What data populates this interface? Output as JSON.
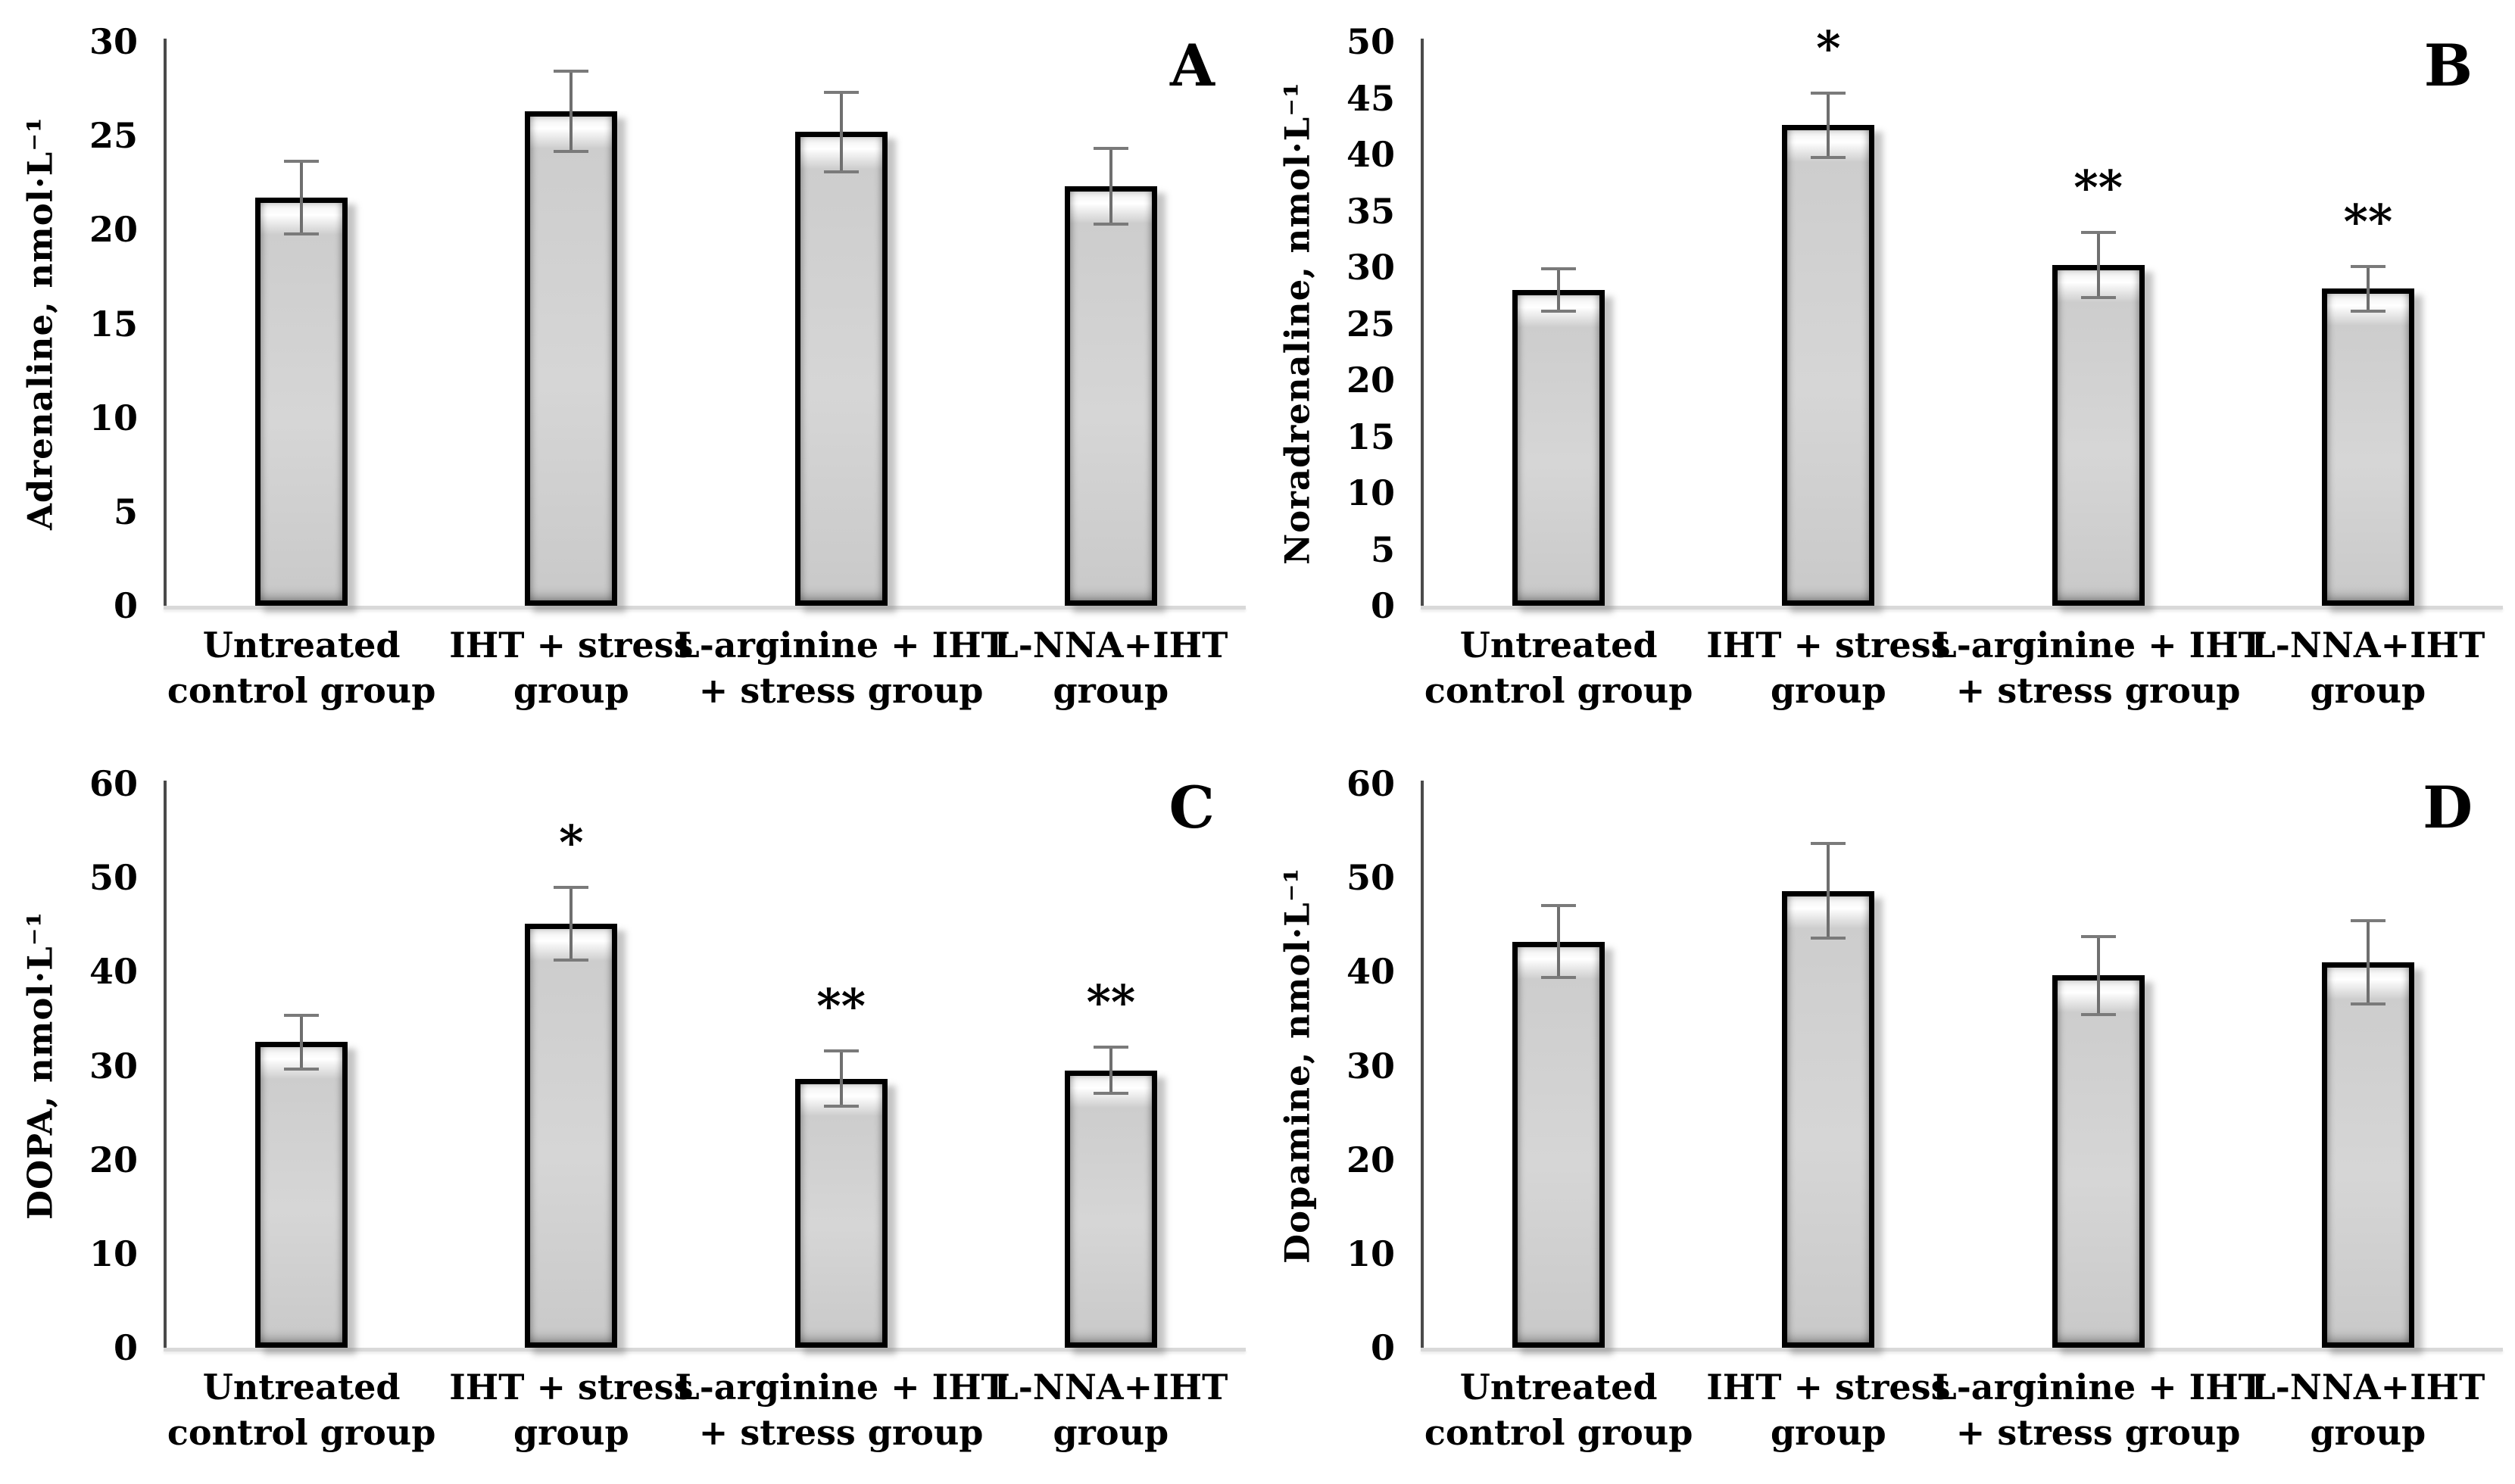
{
  "figure": {
    "background": "#ffffff",
    "layout": "2x2-grid",
    "panel_letters": [
      "A",
      "B",
      "C",
      "D"
    ],
    "colors": {
      "bar_fill": "#d3d3d3",
      "bar_border": "#000000",
      "axis_color": "#4a4a4a",
      "baseline_color": "#d9d9d9",
      "error_bar_color": "#6f6f6f",
      "text_color": "#000000"
    }
  },
  "chart_data": [
    {
      "type": "bar",
      "panel_label": "A",
      "ylabel": "Adrenaline, nmol·L⁻¹",
      "xlabel": "",
      "ylim": [
        0,
        30
      ],
      "yticks": [
        0,
        5,
        10,
        15,
        20,
        25,
        30
      ],
      "grid": false,
      "legend": "none",
      "categories": [
        [
          "Untreated",
          "control group"
        ],
        [
          "IHT + stress",
          "group"
        ],
        [
          "L-arginine + IHT",
          "+ stress group"
        ],
        [
          "L-NNA+IHT",
          "group"
        ]
      ],
      "values": [
        21.7,
        26.3,
        25.2,
        22.3
      ],
      "errors": [
        2.0,
        2.2,
        2.2,
        2.1
      ],
      "significance": [
        "",
        "",
        "",
        ""
      ]
    },
    {
      "type": "bar",
      "panel_label": "B",
      "ylabel": "Noradrenaline, nmol·L⁻¹",
      "xlabel": "",
      "ylim": [
        0,
        50
      ],
      "yticks": [
        0,
        5,
        10,
        15,
        20,
        25,
        30,
        35,
        40,
        45,
        50
      ],
      "grid": false,
      "legend": "none",
      "categories": [
        [
          "Untreated",
          "control group"
        ],
        [
          "IHT + stress",
          "group"
        ],
        [
          "L-arginine + IHT",
          "+ stress group"
        ],
        [
          "L-NNA+IHT",
          "group"
        ]
      ],
      "values": [
        28.0,
        42.6,
        30.2,
        28.1
      ],
      "errors": [
        2.0,
        3.0,
        3.0,
        2.1
      ],
      "significance": [
        "",
        "*",
        "**",
        "**"
      ]
    },
    {
      "type": "bar",
      "panel_label": "C",
      "ylabel": "DOPA, nmol·L⁻¹",
      "xlabel": "",
      "ylim": [
        0,
        60
      ],
      "yticks": [
        0,
        10,
        20,
        30,
        40,
        50,
        60
      ],
      "grid": false,
      "legend": "none",
      "categories": [
        [
          "Untreated",
          "control group"
        ],
        [
          "IHT + stress",
          "group"
        ],
        [
          "L-arginine + IHT",
          "+ stress group"
        ],
        [
          "L-NNA+IHT",
          "group"
        ]
      ],
      "values": [
        32.5,
        45.1,
        28.6,
        29.5
      ],
      "errors": [
        3.0,
        4.0,
        3.1,
        2.6
      ],
      "significance": [
        "",
        "*",
        "**",
        "**"
      ]
    },
    {
      "type": "bar",
      "panel_label": "D",
      "ylabel": "Dopamine, nmol·L⁻¹",
      "xlabel": "",
      "ylim": [
        0,
        60
      ],
      "yticks": [
        0,
        10,
        20,
        30,
        40,
        50,
        60
      ],
      "grid": false,
      "legend": "none",
      "categories": [
        [
          "Untreated",
          "control group"
        ],
        [
          "IHT + stress",
          "group"
        ],
        [
          "L-arginine + IHT",
          "+ stress group"
        ],
        [
          "L-NNA+IHT",
          "group"
        ]
      ],
      "values": [
        43.2,
        48.6,
        39.6,
        41.0
      ],
      "errors": [
        4.0,
        5.2,
        4.3,
        4.6
      ],
      "significance": [
        "",
        "",
        "",
        ""
      ]
    }
  ]
}
